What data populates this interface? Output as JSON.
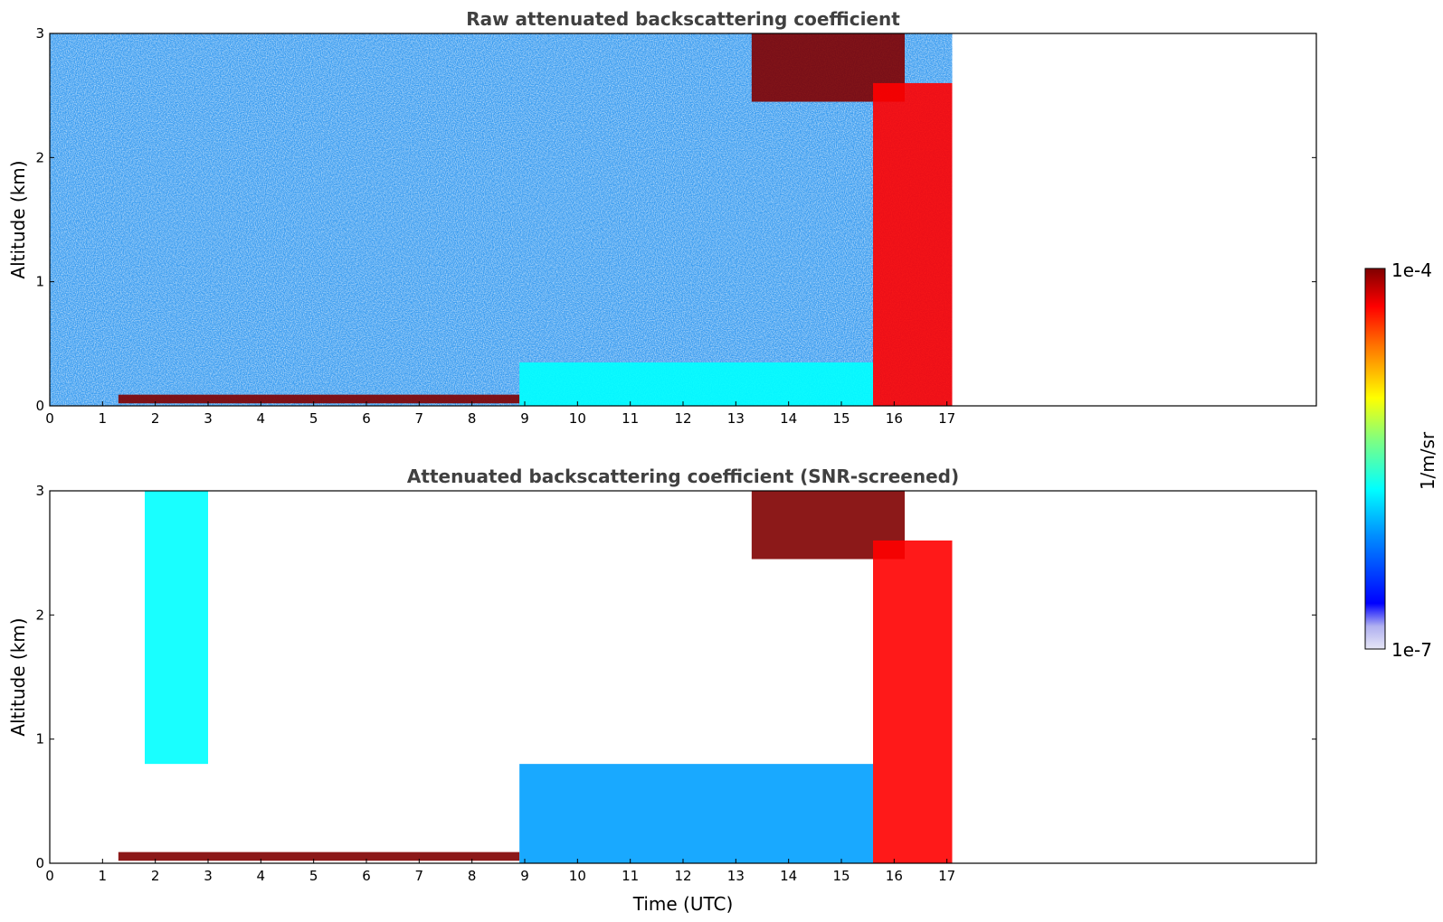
{
  "chart_data": [
    {
      "type": "heatmap",
      "title": "Raw attenuated backscattering coefficient",
      "xlabel": "",
      "ylabel": "Altitude (km)",
      "xlim": [
        0,
        24
      ],
      "ylim": [
        0,
        3
      ],
      "xticks": [
        "0",
        "1",
        "2",
        "3",
        "4",
        "5",
        "6",
        "7",
        "8",
        "9",
        "10",
        "11",
        "12",
        "13",
        "14",
        "15",
        "16",
        "17"
      ],
      "yticks": [
        "0",
        "1",
        "2",
        "3"
      ],
      "data_end_time": 17.1,
      "features": [
        {
          "name": "surface layer",
          "t_start": 1.3,
          "t_end": 8.9,
          "alt_bottom": 0.02,
          "alt_top": 0.09,
          "level": 1.0
        },
        {
          "name": "boundary layer",
          "t_start": 8.9,
          "t_end": 15.6,
          "alt_bottom": 0.0,
          "alt_top": 0.35,
          "level": 0.42
        },
        {
          "name": "upper cloud",
          "t_start": 13.3,
          "t_end": 16.2,
          "alt_bottom": 2.45,
          "alt_top": 3.0,
          "level": 0.95
        },
        {
          "name": "descending cloud",
          "t_start": 15.6,
          "t_end": 17.1,
          "alt_bottom": 0.0,
          "alt_top": 2.6,
          "level": 0.85
        }
      ]
    },
    {
      "type": "heatmap",
      "title": "Attenuated backscattering coefficient (SNR-screened)",
      "xlabel": "Time (UTC)",
      "ylabel": "Altitude (km)",
      "xlim": [
        0,
        24
      ],
      "ylim": [
        0,
        3
      ],
      "xticks": [
        "0",
        "1",
        "2",
        "3",
        "4",
        "5",
        "6",
        "7",
        "8",
        "9",
        "10",
        "11",
        "12",
        "13",
        "14",
        "15",
        "16",
        "17"
      ],
      "yticks": [
        "0",
        "1",
        "2",
        "3"
      ],
      "data_end_time": 17.1,
      "features": [
        {
          "name": "surface layer",
          "t_start": 1.3,
          "t_end": 8.9,
          "alt_bottom": 0.02,
          "alt_top": 0.09,
          "level": 1.0
        },
        {
          "name": "aerosol column",
          "t_start": 1.8,
          "t_end": 3.0,
          "alt_bottom": 0.8,
          "alt_top": 3.0,
          "level": 0.4
        },
        {
          "name": "boundary layer",
          "t_start": 8.9,
          "t_end": 15.6,
          "alt_bottom": 0.0,
          "alt_top": 0.8,
          "level": 0.3
        },
        {
          "name": "upper cloud",
          "t_start": 13.3,
          "t_end": 16.2,
          "alt_bottom": 2.45,
          "alt_top": 3.0,
          "level": 1.0
        },
        {
          "name": "descending cloud",
          "t_start": 15.6,
          "t_end": 17.1,
          "alt_bottom": 0.0,
          "alt_top": 2.6,
          "level": 0.85
        }
      ]
    }
  ],
  "colorbar": {
    "max_label": "1e-4",
    "min_label": "1e-7",
    "unit_label": "1/m/sr",
    "colormap": "jet",
    "colors": [
      "#e6e6f5",
      "#0000ff",
      "#00a0ff",
      "#00ffff",
      "#80ff80",
      "#ffff00",
      "#ff8000",
      "#ff0000",
      "#800000"
    ]
  }
}
